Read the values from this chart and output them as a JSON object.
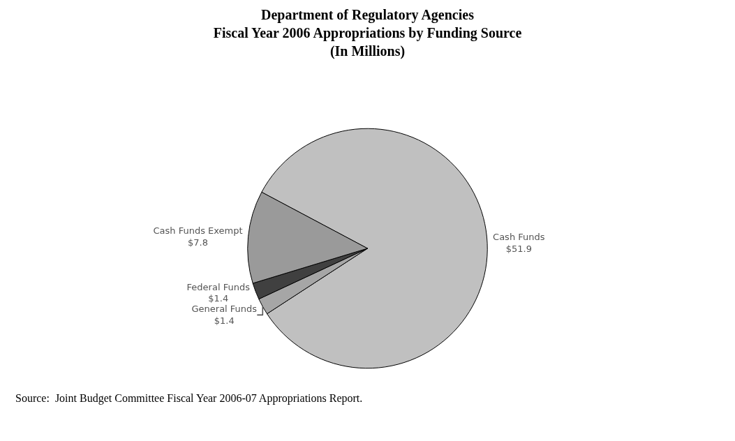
{
  "chart_data": {
    "type": "pie",
    "title": "Department of Regulatory Agencies\nFiscal Year 2006 Appropriations by Funding Source\n(In Millions)",
    "categories": [
      "Cash Funds",
      "General Funds",
      "Federal Funds",
      "Cash Funds Exempt"
    ],
    "values": [
      51.9,
      1.4,
      1.4,
      7.8
    ],
    "value_labels": [
      "$51.9",
      "$1.4",
      "$1.4",
      "$7.8"
    ],
    "colors": [
      "#c0c0c0",
      "#a6a6a6",
      "#404040",
      "#9a9a9a"
    ],
    "legend": false,
    "annotations": [
      "Source:  Joint Budget Committee Fiscal Year 2006-07 Appropriations Report."
    ]
  }
}
